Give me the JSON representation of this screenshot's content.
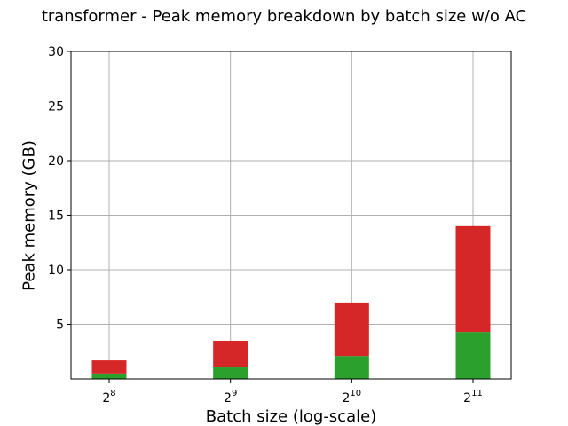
{
  "chart_data": {
    "type": "bar",
    "title": "transformer - Peak memory breakdown by batch size w/o AC",
    "xlabel": "Batch size (log-scale)",
    "ylabel": "Peak memory (GB)",
    "x_scale": "log2",
    "categories": [
      "2^8",
      "2^9",
      "2^10",
      "2^11"
    ],
    "x": [
      256,
      512,
      1024,
      2048
    ],
    "ylim": [
      0,
      30
    ],
    "yticks": [
      5,
      10,
      15,
      20,
      25,
      30
    ],
    "grid": true,
    "stacked": true,
    "series": [
      {
        "color": "#2ca02c",
        "values": [
          0.5,
          1.1,
          2.1,
          4.3
        ]
      },
      {
        "color": "#d62728",
        "values": [
          1.2,
          2.4,
          4.9,
          9.7
        ]
      }
    ]
  }
}
